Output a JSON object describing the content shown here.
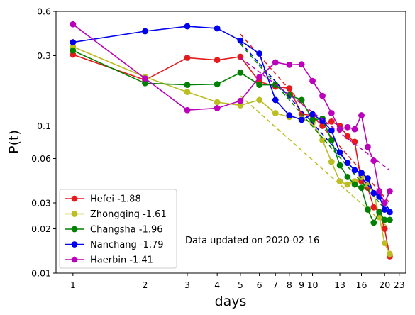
{
  "chart_data": {
    "type": "line",
    "xlabel": "days",
    "ylabel": "P(t)",
    "xscale": "log",
    "yscale": "log",
    "xlim": [
      0.85,
      24.5
    ],
    "ylim": [
      0.01,
      0.6
    ],
    "xticks": [
      1,
      2,
      3,
      4,
      5,
      6,
      7,
      8,
      9,
      10,
      13,
      16,
      20,
      23
    ],
    "xtick_labels": [
      "1",
      "2",
      "3",
      "4",
      "5",
      "6",
      "7",
      "8",
      "9",
      "10",
      "13",
      "16",
      "20",
      "23"
    ],
    "yticks": [
      0.01,
      0.02,
      0.03,
      0.06,
      0.1,
      0.3,
      0.6
    ],
    "ytick_labels": [
      "0.01",
      "0.02",
      "0.03",
      "0.06",
      "0.1",
      "0.3",
      "0.6"
    ],
    "legend_position": "lower-left",
    "annotation": "Data updated on 2020-02-16",
    "series": [
      {
        "name": "Hefei -1.88",
        "color": "#e41a1c",
        "x": [
          1,
          2,
          3,
          4,
          5,
          6,
          7,
          8,
          9,
          10,
          11,
          12,
          13,
          14,
          15,
          16,
          17,
          18,
          19,
          20,
          21
        ],
        "y": [
          0.305,
          0.205,
          0.29,
          0.28,
          0.295,
          0.2,
          0.185,
          0.18,
          0.12,
          0.118,
          0.1,
          0.107,
          0.1,
          0.085,
          0.078,
          0.042,
          0.038,
          0.028,
          0.026,
          0.02,
          0.013
        ],
        "fit": {
          "x": [
            5,
            21
          ],
          "y": [
            0.42,
            0.03
          ]
        }
      },
      {
        "name": "Zhongqing -1.61",
        "color": "#bcbd22",
        "x": [
          1,
          2,
          3,
          4,
          5,
          6,
          7,
          8,
          9,
          10,
          11,
          12,
          13,
          14,
          15,
          16,
          17,
          18,
          19,
          20,
          21
        ],
        "y": [
          0.345,
          0.215,
          0.17,
          0.145,
          0.138,
          0.15,
          0.122,
          0.115,
          0.112,
          0.105,
          0.08,
          0.057,
          0.042,
          0.04,
          0.042,
          0.045,
          0.04,
          0.035,
          0.024,
          0.016,
          0.0135
        ],
        "fit": {
          "x": [
            5,
            21
          ],
          "y": [
            0.16,
            0.02
          ]
        }
      },
      {
        "name": "Changsha -1.96",
        "color": "#008000",
        "x": [
          1,
          2,
          3,
          4,
          5,
          6,
          7,
          8,
          9,
          10,
          11,
          12,
          13,
          14,
          15,
          16,
          17,
          18,
          19,
          20,
          21
        ],
        "y": [
          0.325,
          0.195,
          0.19,
          0.192,
          0.23,
          0.19,
          0.19,
          0.162,
          0.15,
          0.11,
          0.112,
          0.08,
          0.054,
          0.045,
          0.04,
          0.038,
          0.027,
          0.022,
          0.026,
          0.023,
          0.023
        ],
        "fit": {
          "x": [
            5,
            21
          ],
          "y": [
            0.36,
            0.025
          ]
        }
      },
      {
        "name": "Nanchang -1.79",
        "color": "#0000ee",
        "x": [
          1,
          2,
          3,
          4,
          5,
          6,
          7,
          8,
          9,
          10,
          11,
          12,
          13,
          14,
          15,
          16,
          17,
          18,
          19,
          20,
          21
        ],
        "y": [
          0.37,
          0.44,
          0.475,
          0.46,
          0.38,
          0.31,
          0.15,
          0.118,
          0.11,
          0.12,
          0.108,
          0.093,
          0.066,
          0.056,
          0.05,
          0.048,
          0.044,
          0.035,
          0.033,
          0.027,
          0.026
        ],
        "fit": {
          "x": [
            5,
            21
          ],
          "y": [
            0.37,
            0.027
          ]
        }
      },
      {
        "name": "Haerbin -1.41",
        "color": "#bb00bb",
        "x": [
          1,
          2,
          3,
          4,
          5,
          6,
          7,
          8,
          9,
          10,
          11,
          12,
          13,
          14,
          15,
          16,
          17,
          18,
          19,
          20,
          21
        ],
        "y": [
          0.49,
          0.21,
          0.128,
          0.132,
          0.148,
          0.215,
          0.27,
          0.26,
          0.262,
          0.202,
          0.16,
          0.122,
          0.095,
          0.098,
          0.095,
          0.118,
          0.072,
          0.058,
          0.036,
          0.03,
          0.036
        ],
        "fit": {
          "x": [
            5,
            21
          ],
          "y": [
            0.29,
            0.05
          ]
        }
      }
    ]
  }
}
